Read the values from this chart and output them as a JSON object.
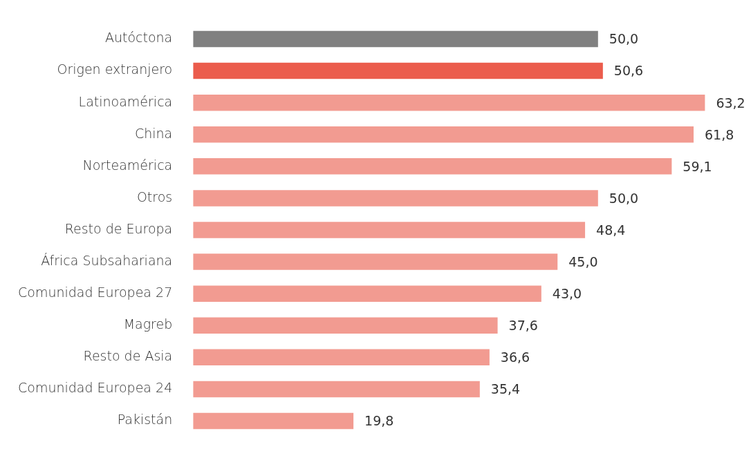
{
  "chart_data": {
    "type": "bar",
    "orientation": "horizontal",
    "categories": [
      "Autóctona",
      "Origen extranjero",
      "Latinoamérica",
      "China",
      "Norteamérica",
      "Otros",
      "Resto de Europa",
      "África Subsahariana",
      "Comunidad Europea 27",
      "Magreb",
      "Resto de Asia",
      "Comunidad Europea 24",
      "Pakistán"
    ],
    "values": [
      50.0,
      50.6,
      63.2,
      61.8,
      59.1,
      50.0,
      48.4,
      45.0,
      43.0,
      37.6,
      36.6,
      35.4,
      19.8
    ],
    "value_labels": [
      "50,0",
      "50,6",
      "63,2",
      "61,8",
      "59,1",
      "50,0",
      "48,4",
      "45,0",
      "43,0",
      "37,6",
      "36,6",
      "35,4",
      "19,8"
    ],
    "colors": [
      "#808080",
      "#eb5c4c",
      "#f29b91",
      "#f29b91",
      "#f29b91",
      "#f29b91",
      "#f29b91",
      "#f29b91",
      "#f29b91",
      "#f29b91",
      "#f29b91",
      "#f29b91",
      "#f29b91"
    ],
    "legend": false
  }
}
